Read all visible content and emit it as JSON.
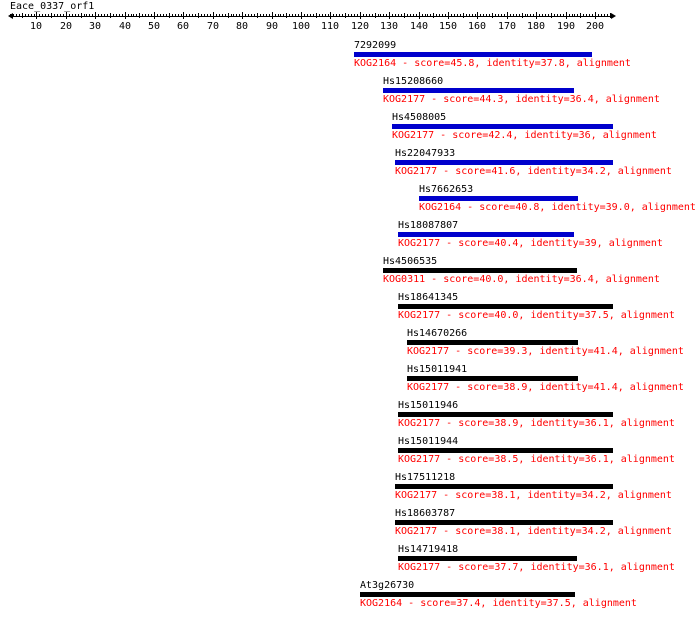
{
  "title": "Eace_0337_orf1",
  "axis": {
    "min": 1,
    "max": 205,
    "labels": [
      10,
      20,
      30,
      40,
      50,
      60,
      70,
      80,
      90,
      100,
      110,
      120,
      130,
      140,
      150,
      160,
      170,
      180,
      190,
      200
    ]
  },
  "colors": {
    "top_hit_bar": "#0000cc",
    "other_bar": "#000000",
    "description": "#ff0000"
  },
  "hits": [
    {
      "name": "7292099",
      "description": "KOG2164 - score=45.8, identity=37.8, alignment",
      "start": 118,
      "end": 199,
      "color": "#0000cc"
    },
    {
      "name": "Hs15208660",
      "description": "KOG2177 - score=44.3, identity=36.4, alignment",
      "start": 128,
      "end": 193,
      "color": "#0000cc"
    },
    {
      "name": "Hs4508005",
      "description": "KOG2177 - score=42.4, identity=36, alignment",
      "start": 131,
      "end": 206,
      "color": "#0000cc"
    },
    {
      "name": "Hs22047933",
      "description": "KOG2177 - score=41.6, identity=34.2, alignment",
      "start": 132,
      "end": 206,
      "color": "#0000cc"
    },
    {
      "name": "Hs7662653",
      "description": "KOG2164 - score=40.8, identity=39.0, alignment",
      "start": 140,
      "end": 194,
      "color": "#0000cc"
    },
    {
      "name": "Hs18087807",
      "description": "KOG2177 - score=40.4, identity=39, alignment",
      "start": 133,
      "end": 193,
      "color": "#0000cc"
    },
    {
      "name": "Hs4506535",
      "description": "KOG0311 - score=40.0, identity=36.4, alignment",
      "start": 128,
      "end": 194,
      "color": "#000000"
    },
    {
      "name": "Hs18641345",
      "description": "KOG2177 - score=40.0, identity=37.5, alignment",
      "start": 133,
      "end": 206,
      "color": "#000000"
    },
    {
      "name": "Hs14670266",
      "description": "KOG2177 - score=39.3, identity=41.4, alignment",
      "start": 136,
      "end": 194,
      "color": "#000000"
    },
    {
      "name": "Hs15011941",
      "description": "KOG2177 - score=38.9, identity=41.4, alignment",
      "start": 136,
      "end": 194,
      "color": "#000000"
    },
    {
      "name": "Hs15011946",
      "description": "KOG2177 - score=38.9, identity=36.1, alignment",
      "start": 133,
      "end": 206,
      "color": "#000000"
    },
    {
      "name": "Hs15011944",
      "description": "KOG2177 - score=38.5, identity=36.1, alignment",
      "start": 133,
      "end": 206,
      "color": "#000000"
    },
    {
      "name": "Hs17511218",
      "description": "KOG2177 - score=38.1, identity=34.2, alignment",
      "start": 132,
      "end": 206,
      "color": "#000000"
    },
    {
      "name": "Hs18603787",
      "description": "KOG2177 - score=38.1, identity=34.2, alignment",
      "start": 132,
      "end": 206,
      "color": "#000000"
    },
    {
      "name": "Hs14719418",
      "description": "KOG2177 - score=37.7, identity=36.1, alignment",
      "start": 133,
      "end": 194,
      "color": "#000000"
    },
    {
      "name": "At3g26730",
      "description": "KOG2164 - score=37.4, identity=37.5, alignment",
      "start": 120,
      "end": 193,
      "color": "#000000"
    }
  ]
}
